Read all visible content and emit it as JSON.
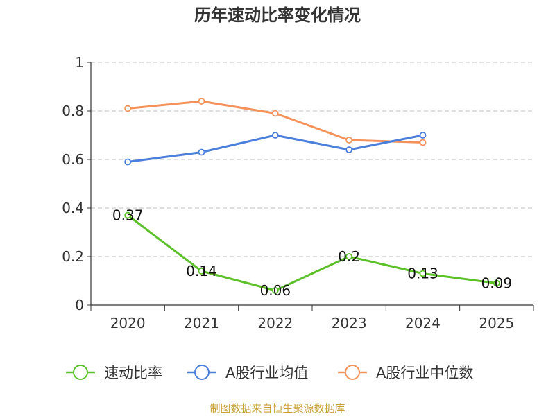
{
  "chart_data": {
    "type": "line",
    "title": "历年速动比率变化情况",
    "categories": [
      "2020",
      "2021",
      "2022",
      "2023",
      "2024",
      "2025"
    ],
    "y_ticks": [
      "0",
      "0.2",
      "0.4",
      "0.6",
      "0.8",
      "1"
    ],
    "ylim": [
      0,
      1
    ],
    "grid": true,
    "legend_position": "bottom",
    "series": [
      {
        "name": "速动比率",
        "color": "#5cc129",
        "values": [
          0.37,
          0.14,
          0.06,
          0.2,
          0.13,
          0.09
        ],
        "labels": [
          "0.37",
          "0.14",
          "0.06",
          "0.2",
          "0.13",
          "0.09"
        ]
      },
      {
        "name": "A股行业均值",
        "color": "#4a7fdc",
        "values": [
          0.59,
          0.63,
          0.7,
          0.64,
          0.7,
          null
        ]
      },
      {
        "name": "A股行业中位数",
        "color": "#f4925a",
        "values": [
          0.81,
          0.84,
          0.79,
          0.68,
          0.67,
          null
        ]
      }
    ],
    "source": "制图数据来自恒生聚源数据库"
  }
}
